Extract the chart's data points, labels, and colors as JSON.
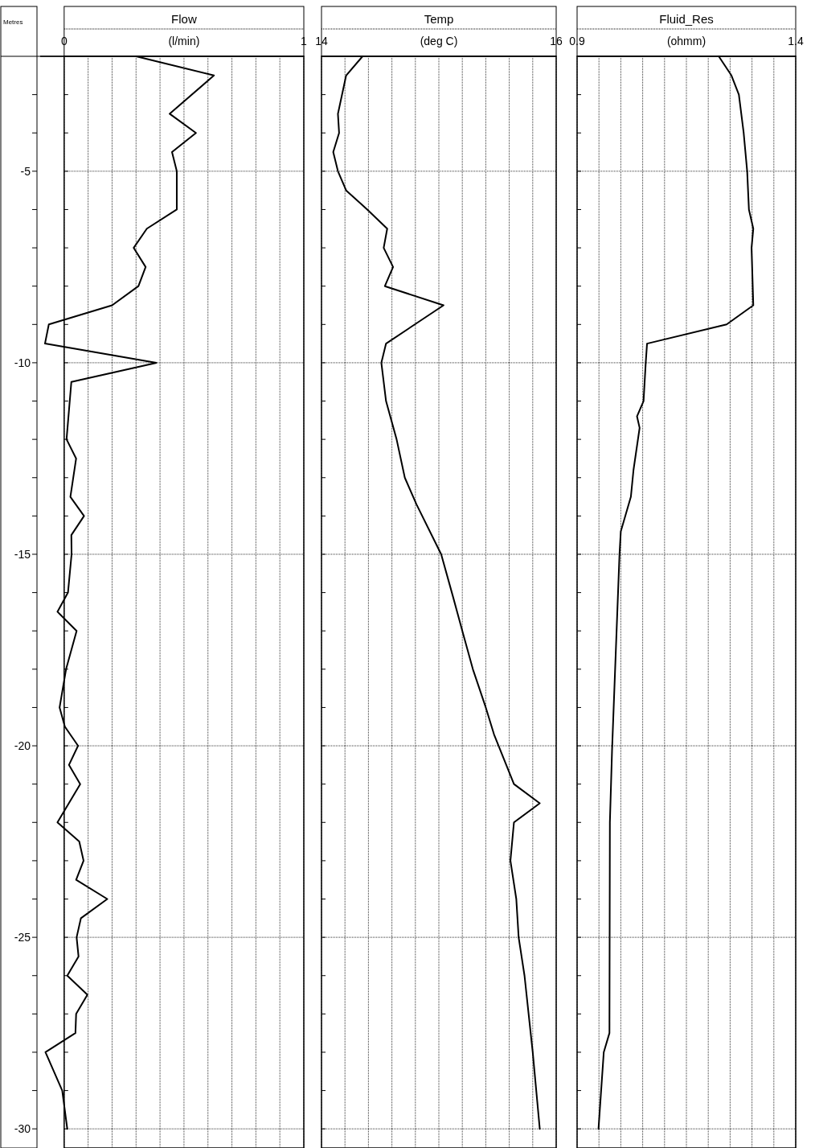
{
  "chart_data": [
    {
      "type": "line",
      "title": "Flow",
      "xlabel": "(l/min)",
      "ylabel": "Metres",
      "xlim": [
        -0.1,
        1
      ],
      "xticks": [
        0,
        {
          "value": 0.1,
          "label": null
        },
        {
          "value": 0.2,
          "label": null
        },
        {
          "value": 0.3,
          "label": null
        },
        {
          "value": 0.4,
          "label": null
        },
        {
          "value": 0.5,
          "label": null
        },
        {
          "value": 0.6,
          "label": null
        },
        {
          "value": 0.7,
          "label": null
        },
        {
          "value": 0.8,
          "label": null
        },
        {
          "value": 0.9,
          "label": null
        },
        1
      ],
      "ylim": [
        -30.5,
        -2
      ],
      "yticks": [
        {
          "value": -3,
          "label": null
        },
        {
          "value": -4,
          "label": null
        },
        -5,
        {
          "value": -6,
          "label": null
        },
        {
          "value": -7,
          "label": null
        },
        {
          "value": -8,
          "label": null
        },
        {
          "value": -9,
          "label": null
        },
        -10,
        {
          "value": -11,
          "label": null
        },
        {
          "value": -12,
          "label": null
        },
        {
          "value": -13,
          "label": null
        },
        {
          "value": -14,
          "label": null
        },
        -15,
        {
          "value": -16,
          "label": null
        },
        {
          "value": -17,
          "label": null
        },
        {
          "value": -18,
          "label": null
        },
        {
          "value": -19,
          "label": null
        },
        -20,
        {
          "value": -21,
          "label": null
        },
        {
          "value": -22,
          "label": null
        },
        {
          "value": -23,
          "label": null
        },
        {
          "value": -24,
          "label": null
        },
        -25,
        {
          "value": -26,
          "label": null
        },
        {
          "value": -27,
          "label": null
        },
        {
          "value": -28,
          "label": null
        },
        {
          "value": -29,
          "label": null
        },
        -30
      ],
      "grid": true,
      "series": [
        {
          "color": "#000000",
          "x": [
            0.3,
            0.625,
            0.44,
            0.55,
            0.45,
            0.47,
            0.47,
            0.345,
            0.29,
            0.34,
            0.31,
            0.2,
            -0.064,
            -0.08,
            0.385,
            0.03,
            0.01,
            0.05,
            0.026,
            0.083,
            0.03,
            0.031,
            0.016,
            -0.028,
            0.052,
            0.008,
            -0.019,
            0.003,
            0.058,
            0.02,
            0.067,
            -0.028,
            0.063,
            0.081,
            0.05,
            0.18,
            0.07,
            0.052,
            0.06,
            0.013,
            0.097,
            0.05,
            0.047,
            -0.078,
            -0.008,
            0.013
          ],
          "values": [
            -2,
            -2.5,
            -3.5,
            -4,
            -4.5,
            -5,
            -6,
            -6.5,
            -7,
            -7.5,
            -8,
            -8.5,
            -9,
            -9.5,
            -10,
            -10.5,
            -12,
            -12.5,
            -13.5,
            -14,
            -14.5,
            -15,
            -16,
            -16.5,
            -17,
            -18,
            -19,
            -19.5,
            -20,
            -20.5,
            -21,
            -22,
            -22.5,
            -23,
            -23.5,
            -24,
            -24.5,
            -25,
            -25.5,
            -26,
            -26.5,
            -27,
            -27.5,
            -28,
            -29,
            -30
          ]
        }
      ]
    },
    {
      "type": "line",
      "title": "Temp",
      "xlabel": "(deg C)",
      "tick_labels": "x",
      "xlim": [
        14,
        16
      ],
      "xticks": [
        14,
        {
          "value": 14.2,
          "label": null
        },
        {
          "value": 14.4,
          "label": null
        },
        {
          "value": 14.6,
          "label": null
        },
        {
          "value": 14.8,
          "label": null
        },
        {
          "value": 15,
          "label": null
        },
        {
          "value": 15.2,
          "label": null
        },
        {
          "value": 15.4,
          "label": null
        },
        {
          "value": 15.6,
          "label": null
        },
        {
          "value": 15.8,
          "label": null
        },
        16
      ],
      "ylim": [
        -30.5,
        -2
      ],
      "yticks": [
        {
          "value": -3,
          "label": null
        },
        {
          "value": -4,
          "label": null
        },
        {
          "value": -5,
          "label": null
        },
        {
          "value": -6,
          "label": null
        },
        {
          "value": -7,
          "label": null
        },
        {
          "value": -8,
          "label": null
        },
        {
          "value": -9,
          "label": null
        },
        {
          "value": -10,
          "label": null
        },
        {
          "value": -11,
          "label": null
        },
        {
          "value": -12,
          "label": null
        },
        {
          "value": -13,
          "label": null
        },
        {
          "value": -14,
          "label": null
        },
        {
          "value": -15,
          "label": null
        },
        {
          "value": -16,
          "label": null
        },
        {
          "value": -17,
          "label": null
        },
        {
          "value": -18,
          "label": null
        },
        {
          "value": -19,
          "label": null
        },
        {
          "value": -20,
          "label": null
        },
        {
          "value": -21,
          "label": null
        },
        {
          "value": -22,
          "label": null
        },
        {
          "value": -23,
          "label": null
        },
        {
          "value": -24,
          "label": null
        },
        {
          "value": -25,
          "label": null
        },
        {
          "value": -26,
          "label": null
        },
        {
          "value": -27,
          "label": null
        },
        {
          "value": -28,
          "label": null
        },
        {
          "value": -29,
          "label": null
        },
        {
          "value": -30,
          "label": null
        }
      ],
      "grid": true,
      "series": [
        {
          "color": "#000000",
          "x": [
            14.35,
            14.21,
            14.14,
            14.15,
            14.1,
            14.14,
            14.21,
            14.39,
            14.56,
            14.53,
            14.61,
            14.54,
            15.04,
            14.55,
            14.51,
            14.55,
            14.64,
            14.71,
            14.81,
            15.02,
            15.12,
            15.2,
            15.29,
            15.4,
            15.47,
            15.64,
            15.86,
            15.64,
            15.61,
            15.66,
            15.68,
            15.73,
            15.8,
            15.86
          ],
          "values": [
            -2,
            -2.5,
            -3.5,
            -4,
            -4.5,
            -5,
            -5.5,
            -6,
            -6.5,
            -7,
            -7.5,
            -8,
            -8.5,
            -9.5,
            -10,
            -11,
            -12,
            -13,
            -13.7,
            -15,
            -16.1,
            -17,
            -18,
            -19,
            -19.7,
            -21,
            -21.5,
            -22,
            -23,
            -24,
            -25,
            -26,
            -28,
            -30
          ]
        }
      ]
    },
    {
      "type": "line",
      "title": "Fluid_Res",
      "xlabel": "(ohmm)",
      "tick_labels": "x",
      "xlim": [
        0.9,
        1.4
      ],
      "xticks": [
        0.9,
        {
          "value": 0.95,
          "label": null
        },
        {
          "value": 1.0,
          "label": null
        },
        {
          "value": 1.05,
          "label": null
        },
        {
          "value": 1.1,
          "label": null
        },
        {
          "value": 1.15,
          "label": null
        },
        {
          "value": 1.2,
          "label": null
        },
        {
          "value": 1.25,
          "label": null
        },
        {
          "value": 1.3,
          "label": null
        },
        {
          "value": 1.35,
          "label": null
        },
        1.4
      ],
      "ylim": [
        -30.5,
        -2
      ],
      "yticks": [
        {
          "value": -3,
          "label": null
        },
        {
          "value": -4,
          "label": null
        },
        {
          "value": -5,
          "label": null
        },
        {
          "value": -6,
          "label": null
        },
        {
          "value": -7,
          "label": null
        },
        {
          "value": -8,
          "label": null
        },
        {
          "value": -9,
          "label": null
        },
        {
          "value": -10,
          "label": null
        },
        {
          "value": -11,
          "label": null
        },
        {
          "value": -12,
          "label": null
        },
        {
          "value": -13,
          "label": null
        },
        {
          "value": -14,
          "label": null
        },
        {
          "value": -15,
          "label": null
        },
        {
          "value": -16,
          "label": null
        },
        {
          "value": -17,
          "label": null
        },
        {
          "value": -18,
          "label": null
        },
        {
          "value": -19,
          "label": null
        },
        {
          "value": -20,
          "label": null
        },
        {
          "value": -21,
          "label": null
        },
        {
          "value": -22,
          "label": null
        },
        {
          "value": -23,
          "label": null
        },
        {
          "value": -24,
          "label": null
        },
        {
          "value": -25,
          "label": null
        },
        {
          "value": -26,
          "label": null
        },
        {
          "value": -27,
          "label": null
        },
        {
          "value": -28,
          "label": null
        },
        {
          "value": -29,
          "label": null
        },
        {
          "value": -30,
          "label": null
        }
      ],
      "grid": true,
      "series": [
        {
          "color": "#000000",
          "x": [
            1.224,
            1.253,
            1.27,
            1.281,
            1.289,
            1.293,
            1.303,
            1.299,
            1.303,
            1.242,
            1.06,
            1.057,
            1.052,
            1.037,
            1.043,
            1.029,
            1.023,
            1.0,
            0.997,
            0.98,
            0.975,
            0.974,
            0.961,
            0.949
          ],
          "values": [
            -2,
            -2.5,
            -3,
            -4,
            -5,
            -6,
            -6.5,
            -7,
            -8.5,
            -9,
            -9.5,
            -10,
            -11,
            -11.4,
            -11.7,
            -12.8,
            -13.5,
            -14.4,
            -15,
            -20.1,
            -22,
            -27.5,
            -28,
            -30
          ]
        }
      ]
    }
  ]
}
